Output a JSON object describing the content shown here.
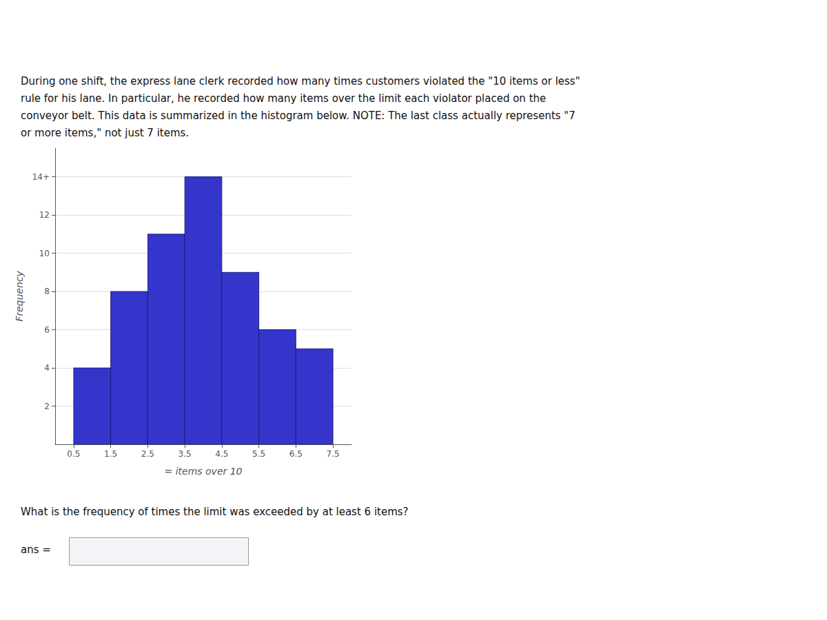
{
  "chart_data": {
    "type": "histogram",
    "subtitle": "During one shift, the express lane clerk recorded how many times customers violated the \"10 items or less\"\nrule for his lane. In particular, he recorded how many items over the limit each violator placed on the\nconveyor belt. This data is summarized in the histogram below. NOTE: The last class actually represents \"7\nor more items,\" not just 7 items.",
    "bins": [
      0.5,
      1.5,
      2.5,
      3.5,
      4.5,
      5.5,
      6.5,
      7.5
    ],
    "values": [
      4,
      8,
      11,
      14,
      9,
      6,
      5
    ],
    "color": "#3535CC",
    "xlabel": "= items over 10",
    "ylabel": "Frequency",
    "xlim": [
      0.0,
      8.0
    ],
    "xticks": [
      0.5,
      1.5,
      2.5,
      3.5,
      4.5,
      5.5,
      6.5,
      7.5
    ],
    "ylim": [
      0,
      15.5
    ],
    "yticks": [
      2,
      4,
      6,
      8,
      10,
      12,
      {
        "value": 14,
        "label": "14+"
      }
    ],
    "grid": true,
    "annotations": [
      "What is the frequency of times the limit was exceeded by at least 6 items?",
      "ans ="
    ]
  }
}
